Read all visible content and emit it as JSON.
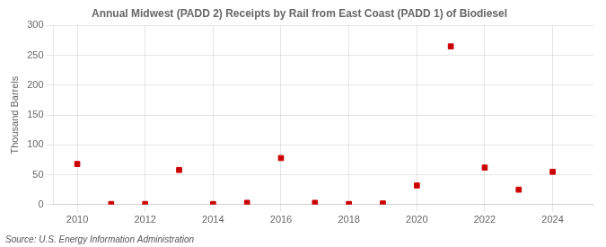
{
  "chart_data": {
    "type": "scatter",
    "title": "Annual Midwest (PADD 2) Receipts by Rail from East Coast (PADD 1) of Biodiesel",
    "ylabel": "Thousand Barrels",
    "annotation": "Source: U.S. Energy Information Administration",
    "x": [
      2010,
      2011,
      2012,
      2013,
      2014,
      2015,
      2016,
      2017,
      2018,
      2019,
      2020,
      2021,
      2022,
      2023,
      2024
    ],
    "values": [
      68,
      1,
      1,
      58,
      1,
      3,
      78,
      3,
      1,
      2,
      32,
      265,
      62,
      25,
      55
    ],
    "color": "#cc0000",
    "marker": "square",
    "xlim": [
      2009.3,
      2025.2
    ],
    "ylim": [
      0,
      300
    ],
    "xticks": [
      2010,
      2012,
      2014,
      2016,
      2018,
      2020,
      2022,
      2024
    ],
    "yticks": [
      0,
      50,
      100,
      150,
      200,
      250,
      300
    ],
    "grid": true
  }
}
